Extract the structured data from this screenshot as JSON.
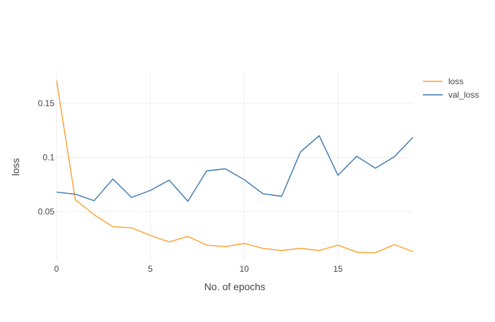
{
  "chart_data": {
    "type": "line",
    "title": "",
    "xlabel": "No. of epochs",
    "ylabel": "loss",
    "x": [
      0,
      1,
      2,
      3,
      4,
      5,
      6,
      7,
      8,
      9,
      10,
      11,
      12,
      13,
      14,
      15,
      16,
      17,
      18,
      19
    ],
    "xlim": [
      0,
      19
    ],
    "ylim": [
      0.0055,
      0.18
    ],
    "xticks": [
      0,
      5,
      10,
      15
    ],
    "xtick_labels": [
      "0",
      "5",
      "10",
      "15"
    ],
    "yticks": [
      0.05,
      0.1,
      0.15
    ],
    "ytick_labels": [
      "0.05",
      "0.1",
      "0.15"
    ],
    "grid": true,
    "legend_position": "top-right",
    "series": [
      {
        "name": "loss",
        "color": "#ff9e2c",
        "values": [
          0.171,
          0.061,
          0.047,
          0.036,
          0.035,
          0.028,
          0.022,
          0.027,
          0.019,
          0.0175,
          0.0205,
          0.016,
          0.014,
          0.016,
          0.014,
          0.019,
          0.0125,
          0.012,
          0.0195,
          0.013
        ]
      },
      {
        "name": "val_loss",
        "color": "#3a77b0",
        "values": [
          0.068,
          0.066,
          0.06,
          0.08,
          0.063,
          0.0695,
          0.079,
          0.0595,
          0.0875,
          0.0895,
          0.0795,
          0.0665,
          0.064,
          0.105,
          0.12,
          0.0835,
          0.101,
          0.09,
          0.1005,
          0.1185
        ]
      }
    ]
  }
}
